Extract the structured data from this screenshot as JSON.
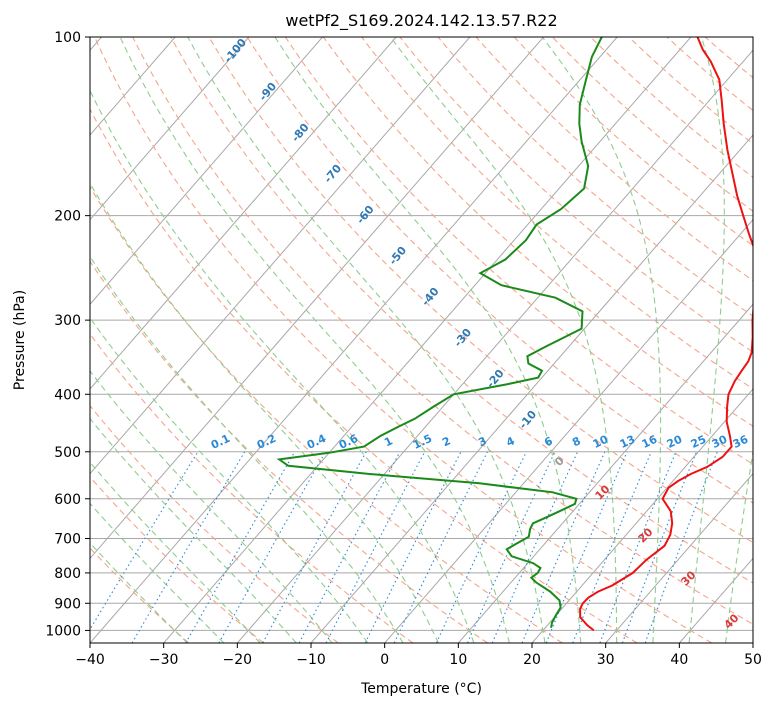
{
  "chart_data": {
    "type": "line",
    "subtype": "skew-T log-p diagram",
    "title": "wetPf2_S169.2024.142.13.57.R22",
    "xlabel": "Temperature (°C)",
    "ylabel": "Pressure (hPa)",
    "xlim": [
      -40,
      50
    ],
    "ylim": [
      1050,
      100
    ],
    "y_scale": "log",
    "x_ticks": [
      -40,
      -30,
      -20,
      -10,
      0,
      10,
      20,
      30,
      40,
      50
    ],
    "y_ticks": [
      100,
      200,
      300,
      400,
      500,
      600,
      700,
      800,
      900,
      1000
    ],
    "grid": true,
    "series": [
      {
        "name": "",
        "role": "temperature",
        "color": "#ee1111",
        "points": [
          [
            1000,
            26.9
          ],
          [
            980,
            25.4
          ],
          [
            950,
            23.5
          ],
          [
            920,
            22.5
          ],
          [
            900,
            22.2
          ],
          [
            880,
            22.3
          ],
          [
            860,
            22.9
          ],
          [
            840,
            24.1
          ],
          [
            800,
            25.4
          ],
          [
            760,
            25.7
          ],
          [
            720,
            26.5
          ],
          [
            690,
            26.0
          ],
          [
            660,
            24.9
          ],
          [
            630,
            23.3
          ],
          [
            600,
            20.7
          ],
          [
            575,
            20.2
          ],
          [
            560,
            20.7
          ],
          [
            545,
            21.6
          ],
          [
            530,
            23.0
          ],
          [
            510,
            23.9
          ],
          [
            490,
            23.9
          ],
          [
            470,
            22.4
          ],
          [
            445,
            20.3
          ],
          [
            420,
            18.6
          ],
          [
            400,
            17.3
          ],
          [
            380,
            16.6
          ],
          [
            365,
            16.3
          ],
          [
            352,
            16.1
          ],
          [
            340,
            15.5
          ],
          [
            320,
            13.8
          ],
          [
            300,
            11.8
          ],
          [
            280,
            9.9
          ],
          [
            262,
            8.5
          ],
          [
            248,
            7.0
          ],
          [
            232,
            4.5
          ],
          [
            215,
            1.2
          ],
          [
            200,
            -1.8
          ],
          [
            185,
            -5.0
          ],
          [
            170,
            -8.2
          ],
          [
            155,
            -11.7
          ],
          [
            140,
            -15.3
          ],
          [
            128,
            -18.3
          ],
          [
            118,
            -21.1
          ],
          [
            110,
            -24.4
          ],
          [
            105,
            -26.9
          ],
          [
            100,
            -29.1
          ]
        ]
      },
      {
        "name": "",
        "role": "dewpoint",
        "color": "#1a8a1a",
        "points": [
          [
            990,
            20.8
          ],
          [
            970,
            20.3
          ],
          [
            945,
            20.0
          ],
          [
            915,
            19.7
          ],
          [
            890,
            18.7
          ],
          [
            860,
            16.4
          ],
          [
            830,
            13.4
          ],
          [
            815,
            12.2
          ],
          [
            800,
            12.5
          ],
          [
            785,
            12.3
          ],
          [
            770,
            10.7
          ],
          [
            750,
            7.0
          ],
          [
            730,
            5.5
          ],
          [
            715,
            6.1
          ],
          [
            695,
            7.0
          ],
          [
            675,
            6.3
          ],
          [
            660,
            6.0
          ],
          [
            645,
            7.1
          ],
          [
            625,
            8.5
          ],
          [
            612,
            9.4
          ],
          [
            600,
            9.0
          ],
          [
            585,
            5.0
          ],
          [
            565,
            -6.0
          ],
          [
            545,
            -22.0
          ],
          [
            528,
            -34.0
          ],
          [
            515,
            -36.0
          ],
          [
            502,
            -30.0
          ],
          [
            490,
            -26.0
          ],
          [
            470,
            -25.0
          ],
          [
            455,
            -23.8
          ],
          [
            440,
            -22.4
          ],
          [
            420,
            -21.3
          ],
          [
            400,
            -20.0
          ],
          [
            385,
            -14.0
          ],
          [
            375,
            -10.5
          ],
          [
            365,
            -10.8
          ],
          [
            355,
            -13.5
          ],
          [
            345,
            -14.5
          ],
          [
            333,
            -13.2
          ],
          [
            310,
            -10.4
          ],
          [
            290,
            -12.3
          ],
          [
            275,
            -17.6
          ],
          [
            262,
            -26.4
          ],
          [
            250,
            -30.7
          ],
          [
            237,
            -28.9
          ],
          [
            220,
            -28.4
          ],
          [
            207,
            -28.8
          ],
          [
            195,
            -27.3
          ],
          [
            180,
            -26.6
          ],
          [
            165,
            -28.7
          ],
          [
            150,
            -32.5
          ],
          [
            140,
            -34.9
          ],
          [
            130,
            -37.1
          ],
          [
            118,
            -39.2
          ],
          [
            108,
            -41.1
          ],
          [
            100,
            -42.1
          ]
        ]
      }
    ],
    "dry_adiabat_labels": [
      "-100",
      "-90",
      "-80",
      "-70",
      "-60",
      "-50",
      "-40",
      "-30",
      "-20",
      "-10"
    ],
    "moist_adiabat_labels": [
      "0",
      "10",
      "20",
      "30",
      "40"
    ],
    "mixing_ratio_labels": [
      "0.1",
      "0.2",
      "0.4",
      "0.6",
      "1",
      "1.5",
      "2",
      "3",
      "4",
      "6",
      "8",
      "10",
      "13",
      "16",
      "20",
      "25",
      "30",
      "36"
    ],
    "colors": {
      "temperature": "#ee1111",
      "dewpoint": "#1a8a1a",
      "isotherm": "#a8a8a8",
      "dry_adiabat": "#f4a58c",
      "moist_adiabat": "#8fcc8f",
      "mixing_ratio": "#2b8ad6",
      "dry_label": "#2f78b4",
      "moist_label": "#d93a3a"
    }
  }
}
